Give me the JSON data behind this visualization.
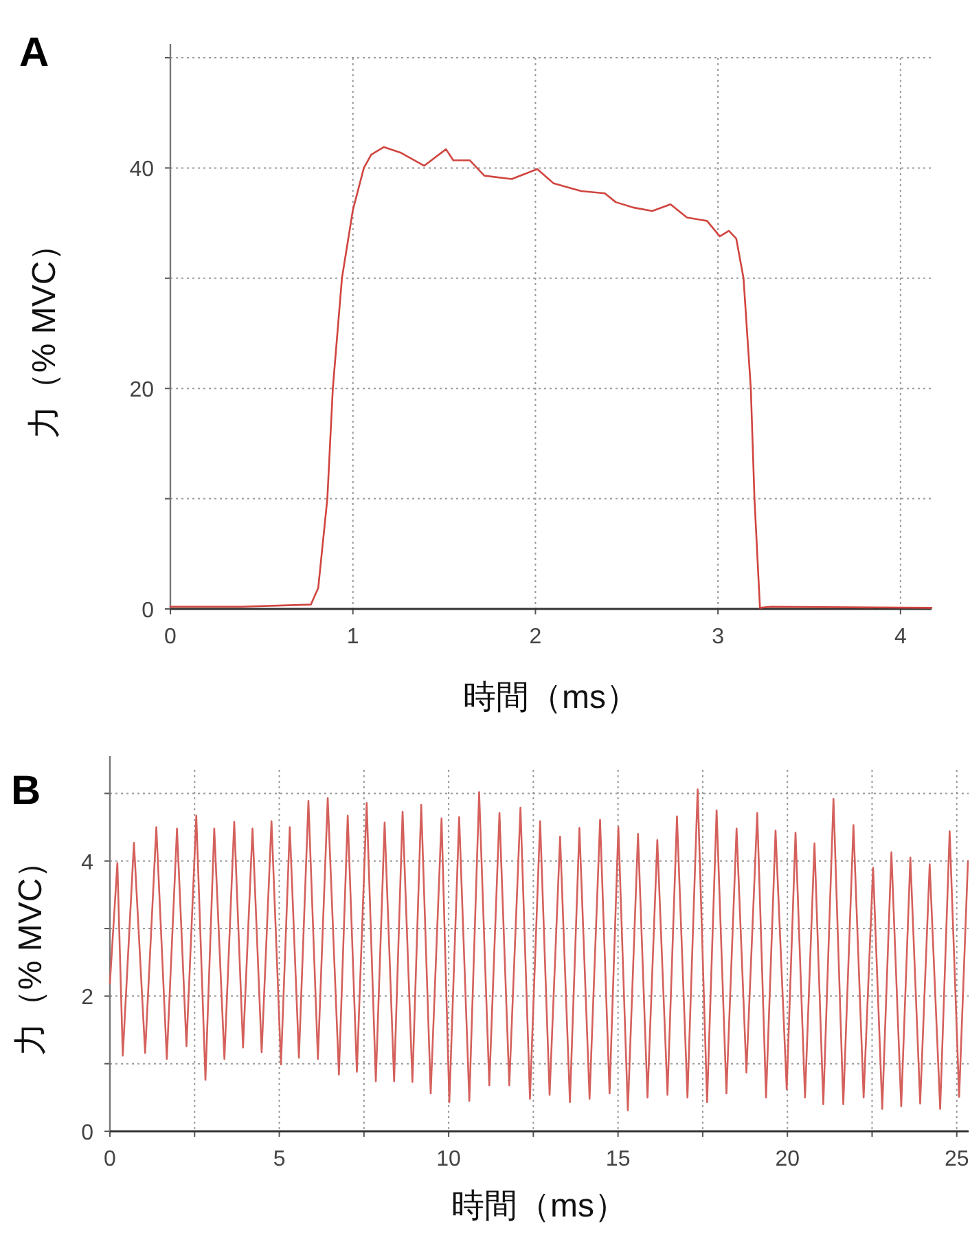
{
  "chart_data": [
    {
      "type": "line",
      "title": "A",
      "xlabel": "時間（ms）",
      "ylabel": "力（% MVC）",
      "xlim": [
        0,
        4.17
      ],
      "ylim": [
        0,
        50
      ],
      "xticks": [
        0,
        1,
        2,
        3,
        4
      ],
      "yticks": [
        0,
        {
          "value": 10,
          "label": null
        },
        20,
        {
          "value": 30,
          "label": null
        },
        40,
        {
          "value": 50,
          "label": null
        }
      ],
      "grid": true,
      "series": [
        {
          "color": "#d0453f",
          "x": [
            0,
            0.39,
            0.77,
            0.81,
            0.86,
            0.89,
            0.94,
            1.0,
            1.06,
            1.1,
            1.17,
            1.26,
            1.39,
            1.51,
            1.55,
            1.64,
            1.72,
            1.87,
            2.01,
            2.1,
            2.25,
            2.38,
            2.44,
            2.54,
            2.64,
            2.74,
            2.83,
            2.94,
            3.01,
            3.06,
            3.1,
            3.14,
            3.18,
            3.2,
            3.23,
            3.29,
            4.17
          ],
          "values": [
            0.2,
            0.2,
            0.4,
            1.9,
            10,
            20,
            30,
            36.2,
            40,
            41.2,
            41.9,
            41.4,
            40.2,
            41.7,
            40.7,
            40.7,
            39.3,
            39,
            39.9,
            38.6,
            37.9,
            37.7,
            36.9,
            36.4,
            36.1,
            36.7,
            35.5,
            35.2,
            33.8,
            34.3,
            33.6,
            30,
            20,
            10,
            0.1,
            0.2,
            0.1
          ]
        }
      ]
    },
    {
      "type": "line",
      "title": "B",
      "xlabel": "時間（ms）",
      "ylabel": "力（% MVC）",
      "xlim": [
        0,
        25.35
      ],
      "ylim": [
        0,
        5.35
      ],
      "xticks": [
        0,
        {
          "value": 2.5,
          "label": null
        },
        5,
        {
          "value": 7.5,
          "label": null
        },
        10,
        {
          "value": 12.5,
          "label": null
        },
        15,
        {
          "value": 17.5,
          "label": null
        },
        20,
        {
          "value": 22.5,
          "label": null
        },
        25
      ],
      "yticks": [
        0,
        {
          "value": 1,
          "label": null
        },
        2,
        {
          "value": 3,
          "label": null
        },
        4,
        {
          "value": 5,
          "label": null
        }
      ],
      "grid": true,
      "series": [
        {
          "color": "#d4605c",
          "x": [
            0,
            0.22,
            0.38,
            0.71,
            1.04,
            1.37,
            1.68,
            1.98,
            2.26,
            2.55,
            2.82,
            3.08,
            3.38,
            3.67,
            3.93,
            4.21,
            4.48,
            4.77,
            5.05,
            5.31,
            5.58,
            5.86,
            6.14,
            6.43,
            6.76,
            7.02,
            7.29,
            7.58,
            7.85,
            8.11,
            8.39,
            8.64,
            8.93,
            9.19,
            9.47,
            9.79,
            10.02,
            10.31,
            10.61,
            10.9,
            11.2,
            11.5,
            11.79,
            12.12,
            12.4,
            12.7,
            12.98,
            13.29,
            13.58,
            13.86,
            14.16,
            14.47,
            14.75,
            15.01,
            15.29,
            15.59,
            15.87,
            16.16,
            16.46,
            16.74,
            17.05,
            17.35,
            17.63,
            17.91,
            18.2,
            18.5,
            18.79,
            19.11,
            19.37,
            19.65,
            19.98,
            20.24,
            20.52,
            20.8,
            21.06,
            21.36,
            21.65,
            21.95,
            22.25,
            22.53,
            22.8,
            23.07,
            23.36,
            23.63,
            23.92,
            24.2,
            24.51,
            24.79,
            25.07,
            25.33
          ],
          "values": [
            2.19,
            3.97,
            1.12,
            4.27,
            1.16,
            4.5,
            1.07,
            4.48,
            1.26,
            4.67,
            0.76,
            4.48,
            1.07,
            4.58,
            1.24,
            4.48,
            1.17,
            4.59,
            0.99,
            4.5,
            1.09,
            4.89,
            1.07,
            4.93,
            0.84,
            4.67,
            0.88,
            4.86,
            0.74,
            4.57,
            0.74,
            4.73,
            0.73,
            4.83,
            0.56,
            4.63,
            0.43,
            4.65,
            0.45,
            5.02,
            0.68,
            4.71,
            0.68,
            4.79,
            0.48,
            4.59,
            0.54,
            4.36,
            0.43,
            4.49,
            0.48,
            4.61,
            0.56,
            4.5,
            0.31,
            4.4,
            0.5,
            4.31,
            0.54,
            4.66,
            0.5,
            5.06,
            0.43,
            4.75,
            0.56,
            4.48,
            0.87,
            4.71,
            0.5,
            4.45,
            0.62,
            4.42,
            0.5,
            4.26,
            0.4,
            4.92,
            0.4,
            4.53,
            0.5,
            3.9,
            0.33,
            4.13,
            0.37,
            4.05,
            0.41,
            3.95,
            0.33,
            4.44,
            0.51,
            4.0
          ]
        }
      ]
    }
  ]
}
